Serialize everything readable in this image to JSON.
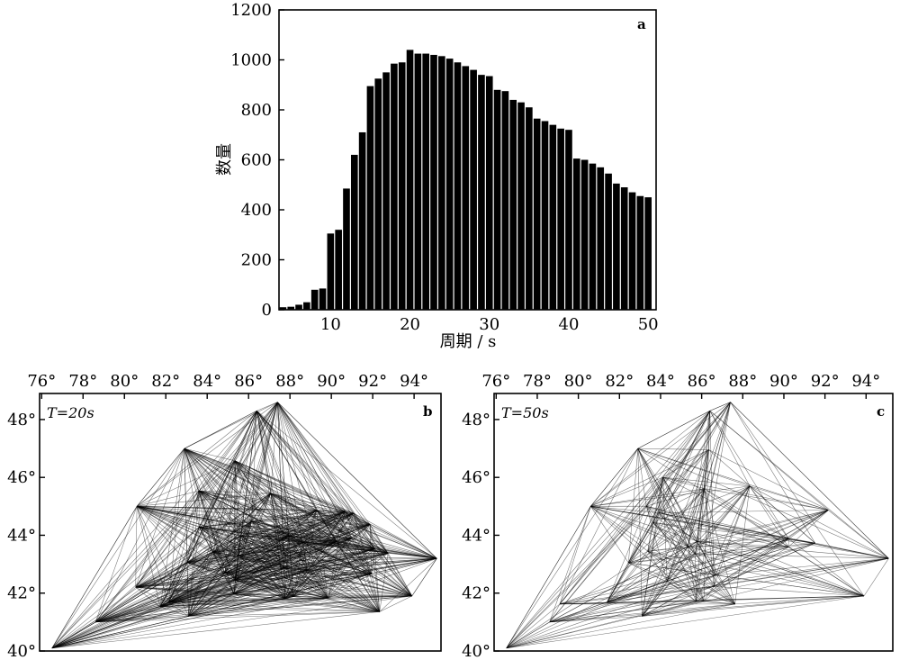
{
  "chart_data": [
    {
      "panel": "a",
      "type": "bar",
      "xlabel": "周期 / s",
      "ylabel": "数量",
      "xlim": [
        3.5,
        51
      ],
      "ylim": [
        0,
        1200
      ],
      "xticks": [
        10,
        20,
        30,
        40,
        50
      ],
      "yticks": [
        0,
        200,
        400,
        600,
        800,
        1000,
        1200
      ],
      "x": [
        4,
        5,
        6,
        7,
        8,
        9,
        10,
        11,
        12,
        13,
        14,
        15,
        16,
        17,
        18,
        19,
        20,
        21,
        22,
        23,
        24,
        25,
        26,
        27,
        28,
        29,
        30,
        31,
        32,
        33,
        34,
        35,
        36,
        37,
        38,
        39,
        40,
        41,
        42,
        43,
        44,
        45,
        46,
        47,
        48,
        49,
        50
      ],
      "values": [
        10,
        12,
        20,
        30,
        80,
        85,
        305,
        320,
        485,
        620,
        710,
        895,
        925,
        950,
        985,
        990,
        1040,
        1025,
        1025,
        1020,
        1015,
        1005,
        990,
        975,
        960,
        940,
        935,
        880,
        875,
        840,
        830,
        810,
        765,
        755,
        740,
        725,
        720,
        605,
        600,
        585,
        570,
        545,
        505,
        490,
        470,
        455,
        450
      ]
    },
    {
      "panel": "b",
      "type": "map",
      "label": "T=20s",
      "xticks": [
        "76°",
        "78°",
        "80°",
        "82°",
        "84°",
        "86°",
        "88°",
        "90°",
        "92°",
        "94°"
      ],
      "yticks": [
        "40°",
        "42°",
        "44°",
        "46°",
        "48°"
      ]
    },
    {
      "panel": "c",
      "type": "map",
      "label": "T=50s",
      "xticks": [
        "76°",
        "78°",
        "80°",
        "82°",
        "84°",
        "86°",
        "88°",
        "90°",
        "92°",
        "94°"
      ],
      "yticks": [
        "40°",
        "42°",
        "44°",
        "46°",
        "48°"
      ]
    }
  ]
}
